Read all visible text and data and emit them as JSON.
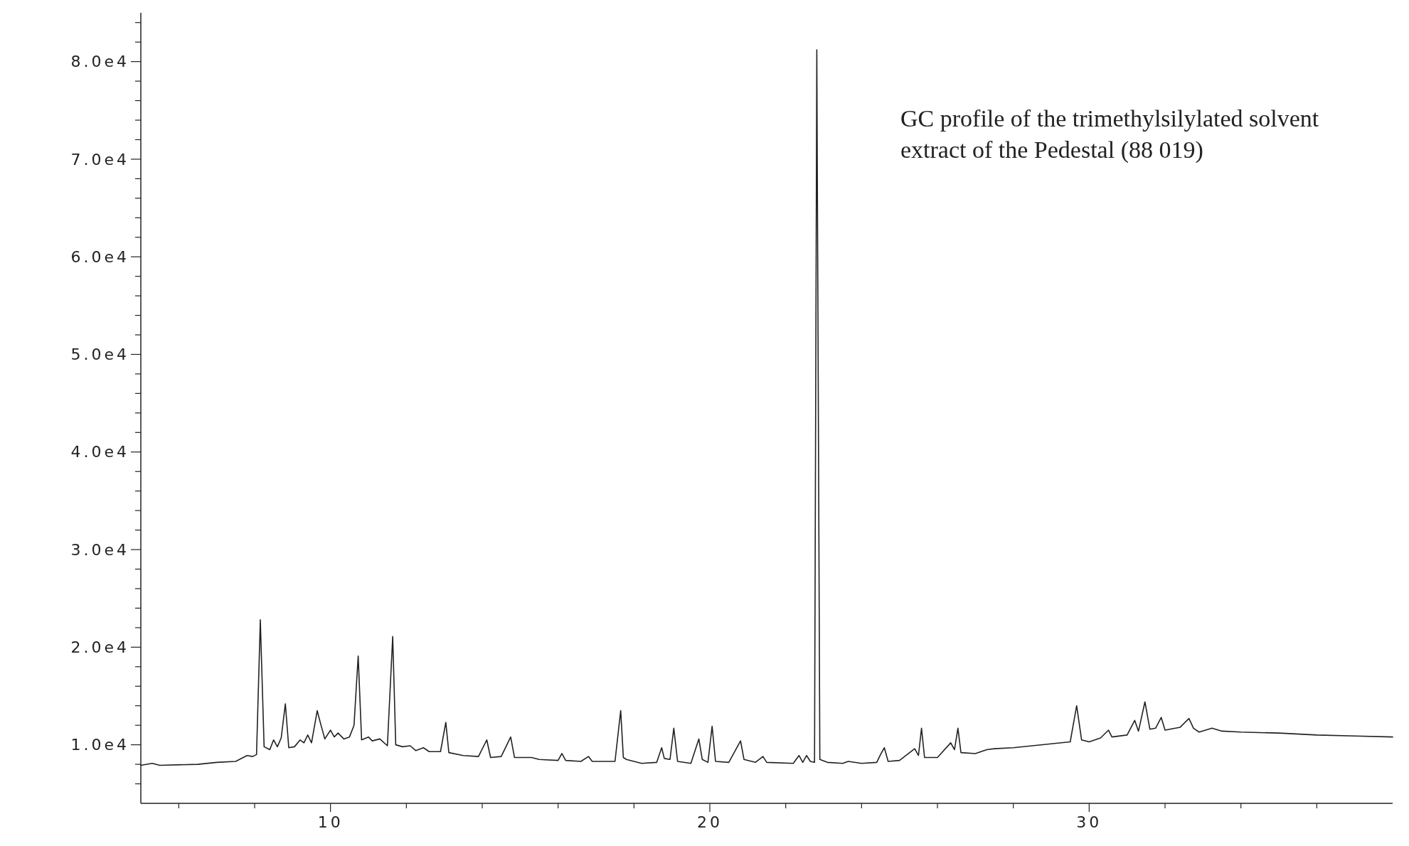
{
  "chart_data": {
    "type": "line",
    "title": "GC profile of the trimethylsilylated solvent extract of the Pedestal (88 019)",
    "color": "#222222",
    "x": [
      5.0,
      5.3,
      5.5,
      6.5,
      7.0,
      7.5,
      7.8,
      7.95,
      8.05,
      8.15,
      8.25,
      8.4,
      8.5,
      8.6,
      8.7,
      8.81,
      8.9,
      9.05,
      9.2,
      9.3,
      9.4,
      9.5,
      9.65,
      9.75,
      9.85,
      10.0,
      10.1,
      10.2,
      10.35,
      10.5,
      10.62,
      10.73,
      10.82,
      11.0,
      11.1,
      11.3,
      11.5,
      11.64,
      11.72,
      11.9,
      12.1,
      12.25,
      12.45,
      12.6,
      12.9,
      13.04,
      13.12,
      13.5,
      13.9,
      14.12,
      14.22,
      14.5,
      14.75,
      14.85,
      15.3,
      15.5,
      16.0,
      16.1,
      16.2,
      16.6,
      16.8,
      16.9,
      17.5,
      17.65,
      17.72,
      17.8,
      18.2,
      18.6,
      18.73,
      18.8,
      18.95,
      19.05,
      19.15,
      19.5,
      19.71,
      19.8,
      19.95,
      20.06,
      20.15,
      20.5,
      20.81,
      20.9,
      21.2,
      21.4,
      21.5,
      22.2,
      22.35,
      22.45,
      22.55,
      22.65,
      22.76,
      22.82,
      22.9,
      23.1,
      23.5,
      23.65,
      24.0,
      24.4,
      24.5,
      24.6,
      24.7,
      25.0,
      25.4,
      25.5,
      25.58,
      25.66,
      26.0,
      26.35,
      26.45,
      26.54,
      26.62,
      27.0,
      27.3,
      27.5,
      28.0,
      28.5,
      29.0,
      29.5,
      29.67,
      29.8,
      30.0,
      30.3,
      30.51,
      30.6,
      31.0,
      31.2,
      31.3,
      31.47,
      31.6,
      31.75,
      31.9,
      32.0,
      32.4,
      32.63,
      32.75,
      32.9,
      33.24,
      33.5,
      34.0,
      35.0,
      36.0,
      37.0,
      38.0
    ],
    "values": [
      7900,
      8100,
      7900,
      8000,
      8200,
      8300,
      8900,
      8800,
      9000,
      22800,
      9800,
      9500,
      10500,
      9800,
      10700,
      14200,
      9700,
      9800,
      10500,
      10200,
      11000,
      10200,
      13500,
      12000,
      10600,
      11500,
      10800,
      11200,
      10600,
      10800,
      12000,
      19100,
      10500,
      10800,
      10400,
      10600,
      9900,
      21100,
      10000,
      9800,
      9900,
      9400,
      9700,
      9300,
      9300,
      12300,
      9200,
      8900,
      8800,
      10500,
      8700,
      8800,
      10800,
      8700,
      8700,
      8500,
      8400,
      9100,
      8400,
      8300,
      8800,
      8300,
      8300,
      13500,
      8700,
      8500,
      8100,
      8200,
      9700,
      8600,
      8500,
      11700,
      8300,
      8100,
      10600,
      8500,
      8200,
      11900,
      8300,
      8200,
      10400,
      8500,
      8200,
      8800,
      8200,
      8100,
      8900,
      8200,
      8900,
      8300,
      8200,
      81200,
      8500,
      8200,
      8100,
      8300,
      8100,
      8200,
      9000,
      9700,
      8300,
      8400,
      9600,
      8900,
      11700,
      8700,
      8700,
      10200,
      9500,
      11700,
      9200,
      9100,
      9500,
      9600,
      9700,
      9900,
      10100,
      10300,
      14000,
      10500,
      10300,
      10700,
      11500,
      10800,
      11000,
      12500,
      11400,
      14400,
      11600,
      11700,
      12800,
      11500,
      11800,
      12700,
      11700,
      11300,
      11700,
      11400,
      11300,
      11200,
      11000,
      10900,
      10800
    ],
    "xlim": [
      5,
      38
    ],
    "ylim": [
      4000,
      85000
    ],
    "xticks": [
      {
        "value": 6,
        "label": null
      },
      {
        "value": 8,
        "label": null
      },
      10,
      {
        "value": 12,
        "label": null
      },
      {
        "value": 14,
        "label": null
      },
      {
        "value": 16,
        "label": null
      },
      {
        "value": 18,
        "label": null
      },
      20,
      {
        "value": 22,
        "label": null
      },
      {
        "value": 24,
        "label": null
      },
      {
        "value": 26,
        "label": null
      },
      {
        "value": 28,
        "label": null
      },
      30,
      {
        "value": 32,
        "label": null
      },
      {
        "value": 34,
        "label": null
      },
      {
        "value": 36,
        "label": null
      }
    ],
    "yticks": [
      {
        "value": 6000,
        "label": null
      },
      {
        "value": 8000,
        "label": null
      },
      {
        "value": 10000,
        "label": "1.0e4"
      },
      {
        "value": 12000,
        "label": null
      },
      {
        "value": 14000,
        "label": null
      },
      {
        "value": 16000,
        "label": null
      },
      {
        "value": 18000,
        "label": null
      },
      {
        "value": 20000,
        "label": "2.0e4"
      },
      {
        "value": 22000,
        "label": null
      },
      {
        "value": 24000,
        "label": null
      },
      {
        "value": 26000,
        "label": null
      },
      {
        "value": 28000,
        "label": null
      },
      {
        "value": 30000,
        "label": "3.0e4"
      },
      {
        "value": 32000,
        "label": null
      },
      {
        "value": 34000,
        "label": null
      },
      {
        "value": 36000,
        "label": null
      },
      {
        "value": 38000,
        "label": null
      },
      {
        "value": 40000,
        "label": "4.0e4"
      },
      {
        "value": 42000,
        "label": null
      },
      {
        "value": 44000,
        "label": null
      },
      {
        "value": 46000,
        "label": null
      },
      {
        "value": 48000,
        "label": null
      },
      {
        "value": 50000,
        "label": "5.0e4"
      },
      {
        "value": 52000,
        "label": null
      },
      {
        "value": 54000,
        "label": null
      },
      {
        "value": 56000,
        "label": null
      },
      {
        "value": 58000,
        "label": null
      },
      {
        "value": 60000,
        "label": "6.0e4"
      },
      {
        "value": 62000,
        "label": null
      },
      {
        "value": 64000,
        "label": null
      },
      {
        "value": 66000,
        "label": null
      },
      {
        "value": 68000,
        "label": null
      },
      {
        "value": 70000,
        "label": "7.0e4"
      },
      {
        "value": 72000,
        "label": null
      },
      {
        "value": 74000,
        "label": null
      },
      {
        "value": 76000,
        "label": null
      },
      {
        "value": 78000,
        "label": null
      },
      {
        "value": 80000,
        "label": "8.0e4"
      },
      {
        "value": 82000,
        "label": null
      },
      {
        "value": 84000,
        "label": null
      }
    ]
  }
}
